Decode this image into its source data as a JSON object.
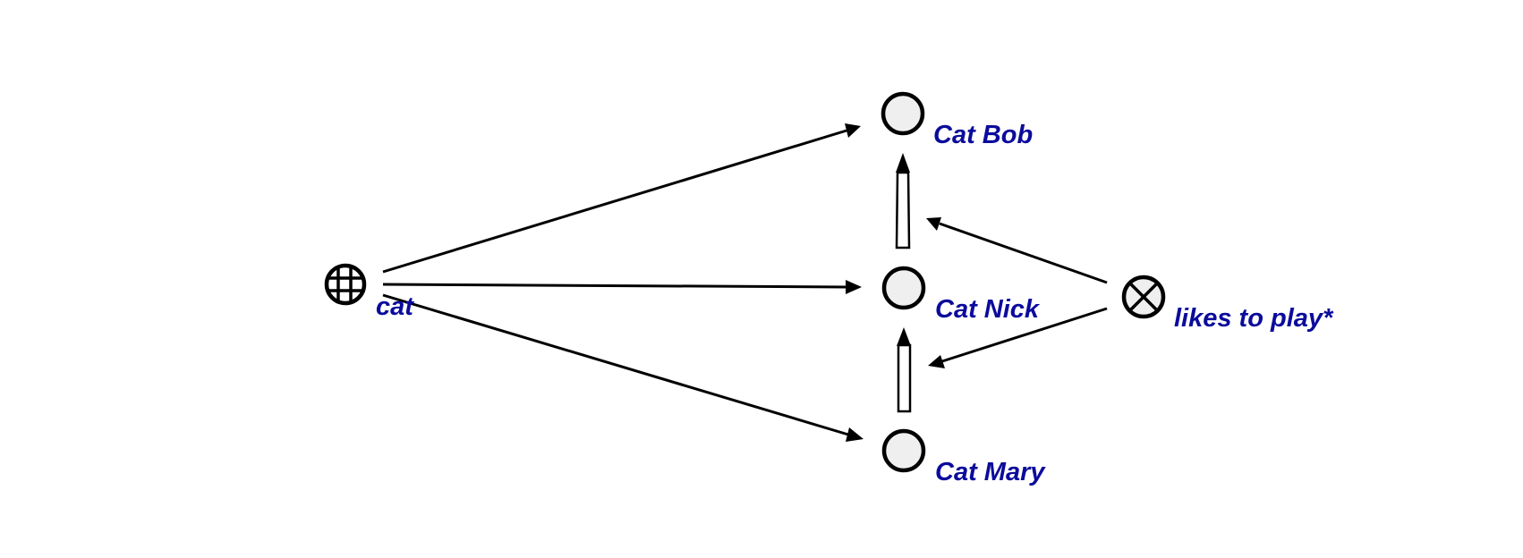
{
  "nodes": {
    "cat": {
      "label": "cat"
    },
    "cat_bob": {
      "label": "Cat Bob"
    },
    "cat_nick": {
      "label": "Cat Nick"
    },
    "cat_mary": {
      "label": "Cat Mary"
    },
    "likes_to_play": {
      "label": "likes to play*"
    }
  },
  "icons": {
    "cat": "grid-circle-icon",
    "instance": "circle-icon",
    "relation": "x-circle-icon"
  },
  "colors": {
    "label": "#0b0b9c",
    "node_fill": "#efefef",
    "stroke": "#000000"
  }
}
